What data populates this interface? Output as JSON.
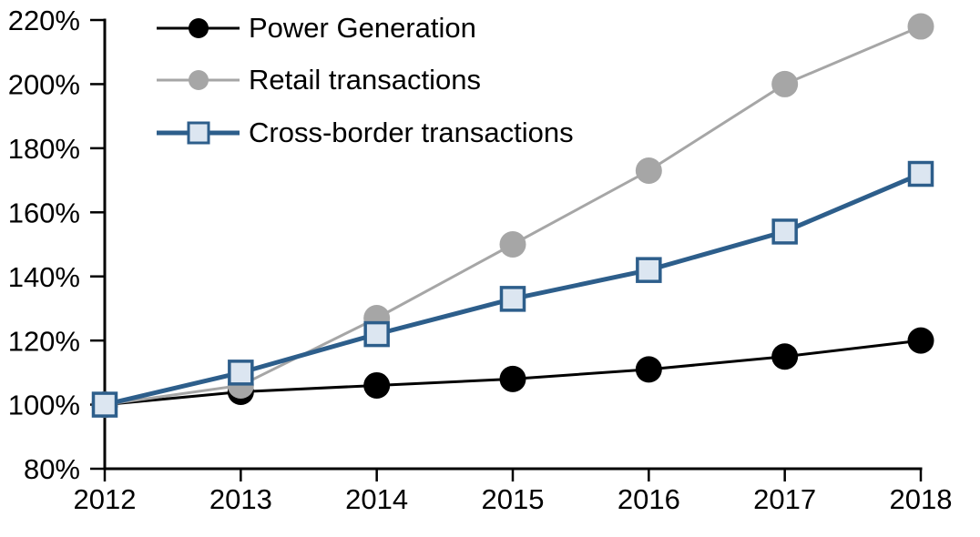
{
  "chart_data": {
    "type": "line",
    "title": "",
    "xlabel": "",
    "ylabel": "",
    "categories": [
      "2012",
      "2013",
      "2014",
      "2015",
      "2016",
      "2017",
      "2018"
    ],
    "series": [
      {
        "name": "Power Generation",
        "values": [
          100,
          104,
          106,
          108,
          111,
          115,
          120
        ],
        "color": "#000000",
        "marker": "circle",
        "marker_fill": "#000000",
        "line_width": 3
      },
      {
        "name": "Retail transactions",
        "values": [
          100,
          106,
          127,
          150,
          173,
          200,
          218
        ],
        "color": "#A6A6A6",
        "marker": "circle",
        "marker_fill": "#A6A6A6",
        "line_width": 3
      },
      {
        "name": "Cross-border transactions",
        "values": [
          100,
          110,
          122,
          133,
          142,
          154,
          172
        ],
        "color": "#2D5E8B",
        "marker": "square",
        "marker_fill": "#DCE6F1",
        "line_width": 5
      }
    ],
    "ylim": [
      80,
      220
    ],
    "ytick_step": 20,
    "ytick_labels": [
      "80%",
      "100%",
      "120%",
      "140%",
      "160%",
      "180%",
      "200%",
      "220%"
    ],
    "axis_color": "#000000",
    "grid": false,
    "legend_position": "top-left"
  }
}
